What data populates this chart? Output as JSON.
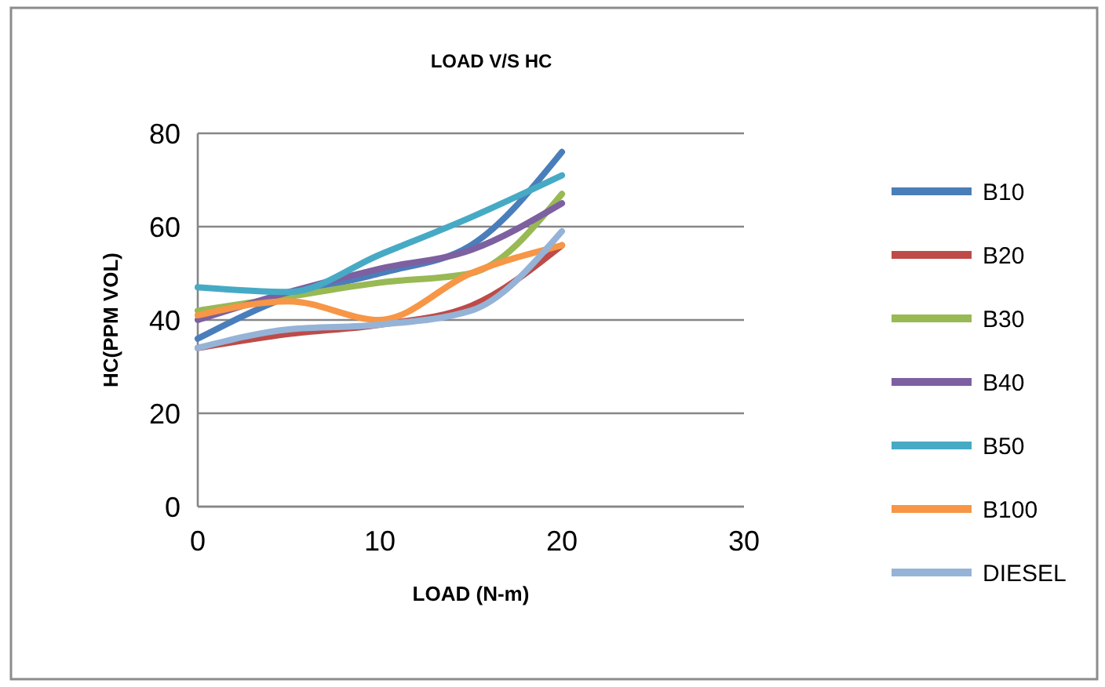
{
  "chart_data": {
    "type": "line",
    "title": "LOAD V/S HC",
    "xlabel": "LOAD (N-m)",
    "ylabel": "HC(PPM VOL)",
    "x": [
      0,
      5,
      10,
      15,
      20
    ],
    "xlim": [
      0,
      30
    ],
    "xticks": [
      0,
      10,
      20,
      30
    ],
    "ylim": [
      0,
      80
    ],
    "yticks": [
      0,
      20,
      40,
      60,
      80
    ],
    "grid": "y",
    "legend": "right",
    "marker": "none",
    "line_style": "solid",
    "series": [
      {
        "name": "B10",
        "color": "#4a7ebb",
        "values": [
          36,
          45,
          50,
          56,
          76
        ]
      },
      {
        "name": "B20",
        "color": "#be4b48",
        "values": [
          34,
          37,
          39,
          43,
          56
        ]
      },
      {
        "name": "B30",
        "color": "#98b954",
        "values": [
          42,
          45,
          48,
          50,
          67
        ]
      },
      {
        "name": "B40",
        "color": "#7d60a0",
        "values": [
          40,
          46,
          51,
          55,
          65
        ]
      },
      {
        "name": "B50",
        "color": "#46aac5",
        "values": [
          47,
          46,
          54,
          62,
          71
        ]
      },
      {
        "name": "B100",
        "color": "#f79646",
        "values": [
          41,
          44,
          40,
          50,
          56
        ]
      },
      {
        "name": "DIESEL",
        "color": "#95b3d7",
        "values": [
          34,
          38,
          39,
          42,
          59
        ]
      }
    ]
  }
}
